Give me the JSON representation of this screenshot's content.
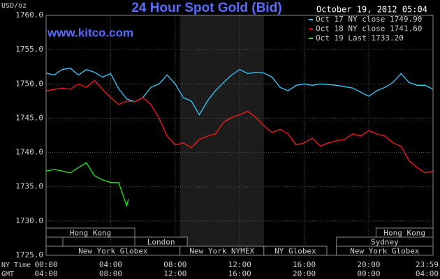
{
  "chart_data": {
    "type": "line",
    "title": "24 Hour Spot Gold (Bid)",
    "source": "www.kitco.com",
    "timestamp": "October 19, 2012 05:04",
    "y_label": "USD/oz",
    "x_row_label": "NY Time",
    "x2_row_label": "GMT",
    "xlim": [
      0,
      23.9833
    ],
    "ylim": [
      1725,
      1760
    ],
    "xticks": [
      {
        "value": 0,
        "label": "00:00"
      },
      {
        "value": 4,
        "label": "04:00"
      },
      {
        "value": 8,
        "label": "08:00"
      },
      {
        "value": 12,
        "label": "12:00"
      },
      {
        "value": 16,
        "label": "16:00"
      },
      {
        "value": 20,
        "label": "20:00"
      },
      {
        "value": 23.9833,
        "label": "23:59"
      }
    ],
    "x2tick_labels": [
      "04:00",
      "08:00",
      "12:00",
      "16:00",
      "20:00",
      "00:00",
      "04:00"
    ],
    "yticks": [
      {
        "value": 1725,
        "label": "1725.0"
      },
      {
        "value": 1730,
        "label": "1730.0"
      },
      {
        "value": 1735,
        "label": "1735.0"
      },
      {
        "value": 1740,
        "label": "1740.0"
      },
      {
        "value": 1745,
        "label": "1745.0"
      },
      {
        "value": 1750,
        "label": "1750.0"
      },
      {
        "value": 1755,
        "label": "1755.0"
      },
      {
        "value": 1760,
        "label": "1760.0"
      }
    ],
    "grid": true,
    "legend": "top-right",
    "sessions": [
      [
        {
          "label": "Hong Kong",
          "start": 0,
          "end": 5.5
        },
        {
          "label": "Hong Kong",
          "start": 20.45,
          "end": 23.9833
        }
      ],
      [
        {
          "label": "London",
          "start": 5.5,
          "end": 8.75
        },
        {
          "label": "Sydney",
          "start": 18,
          "end": 23.9833
        }
      ],
      [
        {
          "label": "New York Globex",
          "start": 0,
          "end": 8.3
        },
        {
          "label": "New York NYMEX",
          "start": 8.3,
          "end": 13.5,
          "highlight": true
        },
        {
          "label": "NY Globex",
          "start": 13.5,
          "end": 17.4
        },
        {
          "label": "New York Globex",
          "start": 18,
          "end": 23.9833
        }
      ]
    ],
    "series": [
      {
        "name": "Oct 17 NY close 1749.90",
        "color": "#33ccff",
        "x": [
          0,
          0.5,
          1,
          1.5,
          2,
          2.5,
          3,
          3.5,
          4,
          4.5,
          5,
          5.5,
          6,
          6.5,
          7,
          7.5,
          8,
          8.5,
          9,
          9.5,
          10,
          10.5,
          11,
          11.5,
          12,
          12.5,
          13,
          13.5,
          14,
          14.5,
          15,
          15.5,
          16,
          16.5,
          17,
          17.5,
          18,
          18.5,
          19,
          19.5,
          20,
          20.5,
          21,
          21.5,
          22,
          22.5,
          23,
          23.5,
          23.9833
        ],
        "values": [
          1751.6,
          1751.3,
          1752.1,
          1752.3,
          1751.3,
          1752.1,
          1751.7,
          1751.0,
          1751.5,
          1749.3,
          1747.8,
          1747.4,
          1748.0,
          1749.5,
          1750.0,
          1751.3,
          1750.0,
          1748.0,
          1747.5,
          1745.5,
          1747.5,
          1749.0,
          1750.2,
          1751.3,
          1752.1,
          1751.5,
          1751.7,
          1751.6,
          1751.0,
          1749.5,
          1749.0,
          1749.8,
          1750.0,
          1749.8,
          1750.0,
          1749.9,
          1749.8,
          1749.6,
          1749.4,
          1748.8,
          1748.2,
          1749.0,
          1749.5,
          1750.2,
          1751.5,
          1750.2,
          1749.8,
          1749.8,
          1749.2
        ]
      },
      {
        "name": "Oct 18 NY close 1741.60",
        "color": "#ff1a1a",
        "x": [
          0,
          0.5,
          1,
          1.5,
          2,
          2.5,
          3,
          3.5,
          4,
          4.5,
          5,
          5.5,
          6,
          6.5,
          7,
          7.5,
          8,
          8.5,
          9,
          9.5,
          10,
          10.5,
          11,
          11.5,
          12,
          12.5,
          13,
          13.5,
          14,
          14.5,
          15,
          15.5,
          16,
          16.5,
          17,
          17.5,
          18,
          18.5,
          19,
          19.5,
          20,
          20.5,
          21,
          21.5,
          22,
          22.5,
          23,
          23.5,
          23.9833
        ],
        "values": [
          1749.0,
          1749.2,
          1749.4,
          1749.2,
          1750.0,
          1749.5,
          1750.5,
          1749.2,
          1748.0,
          1747.0,
          1747.5,
          1747.4,
          1748.0,
          1747.0,
          1745.0,
          1742.4,
          1741.1,
          1741.4,
          1740.7,
          1741.9,
          1742.4,
          1742.7,
          1744.4,
          1745.1,
          1745.5,
          1746.0,
          1745.1,
          1743.9,
          1742.9,
          1743.4,
          1742.7,
          1741.1,
          1741.4,
          1742.1,
          1740.9,
          1741.4,
          1741.7,
          1741.9,
          1742.7,
          1742.4,
          1743.2,
          1742.7,
          1742.4,
          1741.4,
          1740.9,
          1738.8,
          1737.8,
          1737.0,
          1737.3
        ]
      },
      {
        "name": "Oct 19 Last 1733.20",
        "color": "#22ee22",
        "x": [
          0,
          0.5,
          1,
          1.5,
          2,
          2.5,
          3,
          3.5,
          4,
          4.5,
          5,
          5.1
        ],
        "values": [
          1737.3,
          1737.5,
          1737.3,
          1737.0,
          1737.8,
          1738.5,
          1736.6,
          1736.0,
          1735.6,
          1735.6,
          1732.2,
          1733.2
        ]
      }
    ]
  }
}
